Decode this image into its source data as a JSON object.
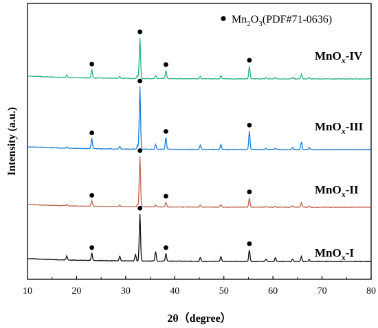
{
  "chart_data": {
    "type": "line",
    "xlabel": "2θ（degree）",
    "ylabel": "Intensity (a.u.)",
    "xlim": [
      10,
      80
    ],
    "x_ticks": [
      10,
      20,
      30,
      40,
      50,
      60,
      70,
      80
    ],
    "y_ticks_shown": false,
    "grid": false,
    "legend": {
      "position": "top-right",
      "marker": "filled-circle",
      "text_parts": [
        "Mn",
        "2",
        "O",
        "3",
        "(PDF#71-0636)"
      ]
    },
    "reference_phase_markers_x": [
      23.1,
      32.9,
      38.2,
      55.2
    ],
    "series": [
      {
        "label_parts": [
          "MnO",
          "x",
          "-IV"
        ],
        "color": "#2bb57d",
        "baseline": 1.0,
        "noise": 0.012,
        "peaks": [
          [
            18.0,
            0.05
          ],
          [
            23.1,
            0.18
          ],
          [
            28.8,
            0.04
          ],
          [
            32.4,
            0.06
          ],
          [
            32.9,
            0.85
          ],
          [
            36.1,
            0.06
          ],
          [
            38.2,
            0.17
          ],
          [
            45.2,
            0.05
          ],
          [
            49.4,
            0.07
          ],
          [
            55.2,
            0.26
          ],
          [
            58.6,
            0.03
          ],
          [
            60.5,
            0.03
          ],
          [
            64.0,
            0.03
          ],
          [
            65.8,
            0.1
          ],
          [
            67.4,
            0.03
          ]
        ]
      },
      {
        "label_parts": [
          "MnO",
          "x",
          "-III"
        ],
        "color": "#1f7fd6",
        "baseline": 1.0,
        "noise": 0.012,
        "peaks": [
          [
            18.0,
            0.03
          ],
          [
            23.1,
            0.22
          ],
          [
            28.8,
            0.05
          ],
          [
            32.4,
            0.08
          ],
          [
            32.9,
            1.3
          ],
          [
            36.1,
            0.1
          ],
          [
            38.2,
            0.25
          ],
          [
            45.2,
            0.09
          ],
          [
            49.4,
            0.11
          ],
          [
            55.2,
            0.38
          ],
          [
            58.6,
            0.03
          ],
          [
            60.5,
            0.03
          ],
          [
            64.0,
            0.04
          ],
          [
            65.8,
            0.16
          ],
          [
            67.4,
            0.04
          ]
        ]
      },
      {
        "label_parts": [
          "MnO",
          "x",
          "-II"
        ],
        "color": "#c0674f",
        "baseline": 1.0,
        "noise": 0.01,
        "peaks": [
          [
            18.0,
            0.03
          ],
          [
            23.1,
            0.12
          ],
          [
            28.8,
            0.03
          ],
          [
            32.4,
            0.05
          ],
          [
            32.9,
            1.05
          ],
          [
            36.1,
            0.04
          ],
          [
            38.2,
            0.1
          ],
          [
            45.2,
            0.04
          ],
          [
            49.4,
            0.05
          ],
          [
            55.2,
            0.19
          ],
          [
            58.6,
            0.02
          ],
          [
            60.5,
            0.02
          ],
          [
            64.0,
            0.03
          ],
          [
            65.8,
            0.1
          ],
          [
            67.4,
            0.03
          ]
        ]
      },
      {
        "label_parts": [
          "MnO",
          "x",
          "-I"
        ],
        "color": "#111111",
        "baseline": 1.0,
        "noise": 0.012,
        "peaks": [
          [
            18.0,
            0.08
          ],
          [
            23.1,
            0.16
          ],
          [
            28.8,
            0.1
          ],
          [
            32.0,
            0.14
          ],
          [
            32.9,
            0.98
          ],
          [
            36.1,
            0.2
          ],
          [
            38.2,
            0.16
          ],
          [
            45.2,
            0.08
          ],
          [
            49.4,
            0.1
          ],
          [
            55.2,
            0.24
          ],
          [
            58.6,
            0.05
          ],
          [
            60.5,
            0.08
          ],
          [
            64.0,
            0.05
          ],
          [
            65.8,
            0.1
          ],
          [
            67.4,
            0.04
          ]
        ]
      }
    ]
  }
}
